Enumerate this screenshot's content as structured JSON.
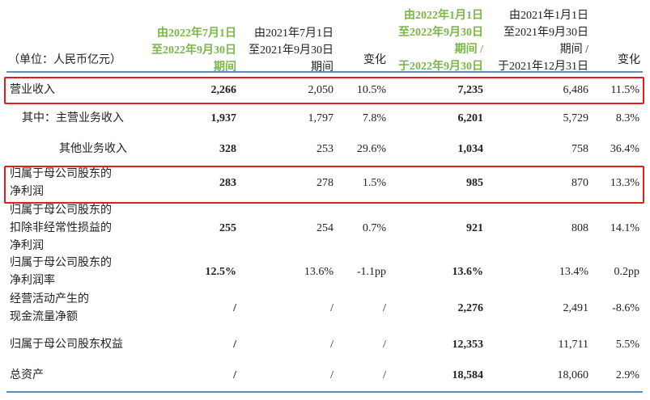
{
  "header": {
    "unit": "（单位：人民币亿元）",
    "col1": "由2022年7月1日\n至2022年9月30日\n期间",
    "col2": "由2021年7月1日\n至2021年9月30日\n期间",
    "col3": "变化",
    "col4": "由2022年1月1日\n至2022年9月30日\n期间 /\n于2022年9月30日",
    "col5": "由2021年1月1日\n至2021年9月30日\n期间 /\n于2021年12月31日",
    "col6": "变化"
  },
  "colors": {
    "highlight_header": "#7ab648",
    "box": "#e02020",
    "rule": "#5b8fc0"
  },
  "rows": [
    {
      "label": "营业收入",
      "values": [
        "2,266",
        "2,050",
        "10.5%",
        "7,235",
        "6,486",
        "11.5%"
      ],
      "highlighted": true
    },
    {
      "label": "其中：主营业务收入",
      "values": [
        "1,937",
        "1,797",
        "7.8%",
        "6,201",
        "5,729",
        "8.3%"
      ]
    },
    {
      "label": "其他业务收入",
      "values": [
        "328",
        "253",
        "29.6%",
        "1,034",
        "758",
        "36.4%"
      ]
    },
    {
      "label": "归属于母公司股东的\n净利润",
      "values": [
        "283",
        "278",
        "1.5%",
        "985",
        "870",
        "13.3%"
      ],
      "highlighted": true
    },
    {
      "label": "归属于母公司股东的\n扣除非经常性损益的\n净利润",
      "values": [
        "255",
        "254",
        "0.7%",
        "921",
        "808",
        "14.1%"
      ]
    },
    {
      "label": "归属于母公司股东的\n净利润率",
      "values": [
        "12.5%",
        "13.6%",
        "-1.1pp",
        "13.6%",
        "13.4%",
        "0.2pp"
      ]
    },
    {
      "label": "经营活动产生的\n现金流量净额",
      "values": [
        "/",
        "/",
        "/",
        "2,276",
        "2,491",
        "-8.6%"
      ]
    },
    {
      "label": "归属于母公司股东权益",
      "values": [
        "/",
        "/",
        "/",
        "12,353",
        "11,711",
        "5.5%"
      ]
    },
    {
      "label": "总资产",
      "values": [
        "/",
        "/",
        "/",
        "18,584",
        "18,060",
        "2.9%"
      ]
    }
  ]
}
